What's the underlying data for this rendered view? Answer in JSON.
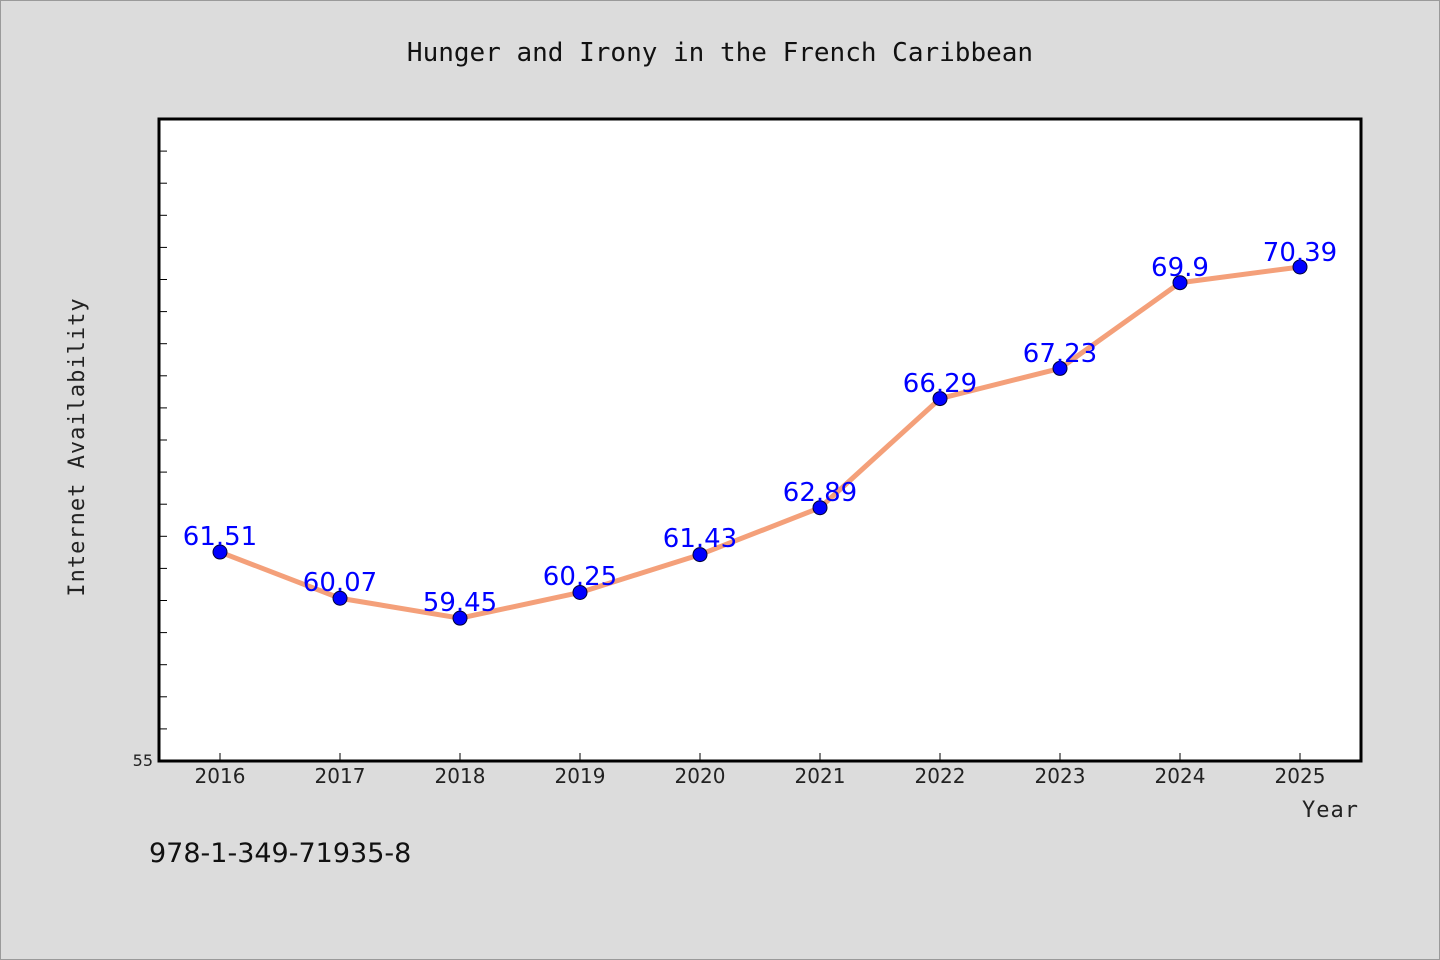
{
  "chart_data": {
    "type": "line",
    "title": "Hunger and Irony in the French Caribbean",
    "xlabel": "Year",
    "ylabel": "Internet Availability",
    "categories": [
      "2016",
      "2017",
      "2018",
      "2019",
      "2020",
      "2021",
      "2022",
      "2023",
      "2024",
      "2025"
    ],
    "series": [
      {
        "values": [
          61.51,
          60.07,
          59.45,
          60.25,
          61.43,
          62.89,
          66.29,
          67.23,
          69.9,
          70.39
        ],
        "labels": [
          "61.51",
          "60.07",
          "59.45",
          "60.25",
          "61.43",
          "62.89",
          "66.29",
          "67.23",
          "69.9",
          "70.39"
        ],
        "line_color": "#f4a07a",
        "marker_color": "#0000ff"
      }
    ],
    "ylim": [
      55,
      75
    ],
    "ytick_labels": [
      "55"
    ],
    "grid": false,
    "legend": "none"
  },
  "footer": {
    "isbn": "978-1-349-71935-8"
  }
}
